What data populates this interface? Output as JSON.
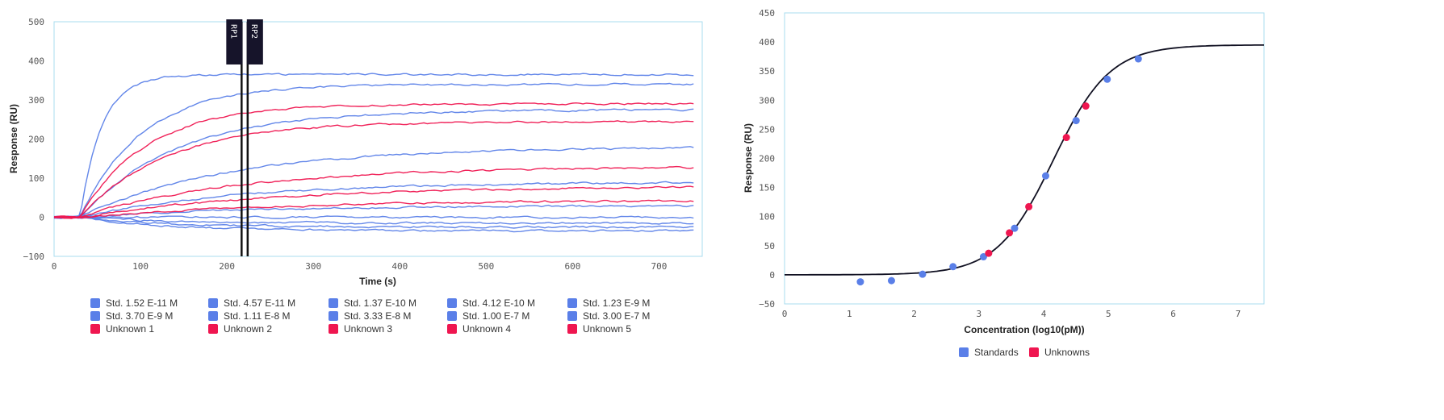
{
  "colors": {
    "standard": "#5a7fe8",
    "unknown": "#ef1650",
    "border": "#a9dcef",
    "curve": "#111122"
  },
  "chart_data": [
    {
      "type": "line",
      "title": "",
      "xlabel": "Time (s)",
      "ylabel": "Response (RU)",
      "xlim": [
        0,
        750
      ],
      "ylim": [
        -100,
        500
      ],
      "xticks": [
        "0",
        "100",
        "200",
        "300",
        "400",
        "500",
        "600",
        "700"
      ],
      "yticks": [
        "500",
        "400",
        "300",
        "200",
        "100",
        "0",
        "−100"
      ],
      "injection_start": 30,
      "markers": [
        {
          "label": "RP1",
          "x": 217
        },
        {
          "label": "RP2",
          "x": 224
        }
      ],
      "series": [
        {
          "name": "Std. 1.52 E-11 M",
          "kind": "standard",
          "plateau": -35,
          "rate": 0.01
        },
        {
          "name": "Std. 4.57 E-11 M",
          "kind": "standard",
          "plateau": -25,
          "rate": 0.01
        },
        {
          "name": "Std. 1.37 E-10 M",
          "kind": "standard",
          "plateau": -15,
          "rate": 0.01
        },
        {
          "name": "Std. 4.12 E-10 M",
          "kind": "standard",
          "plateau": 0,
          "rate": 0.008
        },
        {
          "name": "Std. 1.23 E-9 M",
          "kind": "standard",
          "plateau": 30,
          "rate": 0.005
        },
        {
          "name": "Std. 3.70 E-9 M",
          "kind": "standard",
          "plateau": 90,
          "rate": 0.0055
        },
        {
          "name": "Std. 1.11 E-8 M",
          "kind": "standard",
          "plateau": 180,
          "rate": 0.006
        },
        {
          "name": "Std. 3.33 E-8 M",
          "kind": "standard",
          "plateau": 275,
          "rate": 0.009
        },
        {
          "name": "Std. 1.00 E-7 M",
          "kind": "standard",
          "plateau": 340,
          "rate": 0.014
        },
        {
          "name": "Std. 3.00 E-7 M",
          "kind": "standard",
          "plateau": 365,
          "rate": 0.04
        },
        {
          "name": "Unknown 1",
          "kind": "unknown",
          "plateau": 290,
          "rate": 0.013
        },
        {
          "name": "Unknown 2",
          "kind": "unknown",
          "plateau": 245,
          "rate": 0.01
        },
        {
          "name": "Unknown 3",
          "kind": "unknown",
          "plateau": 130,
          "rate": 0.0055
        },
        {
          "name": "Unknown 4",
          "kind": "unknown",
          "plateau": 80,
          "rate": 0.0045
        },
        {
          "name": "Unknown 5",
          "kind": "unknown",
          "plateau": 45,
          "rate": 0.004
        }
      ],
      "legend_order": [
        "Std. 1.52 E-11 M",
        "Std. 4.57 E-11 M",
        "Std. 1.37 E-10 M",
        "Std. 4.12 E-10 M",
        "Std. 1.23 E-9 M",
        "Std. 3.70 E-9 M",
        "Std. 1.11 E-8 M",
        "Std. 3.33 E-8 M",
        "Std. 1.00 E-7 M",
        "Std. 3.00 E-7 M",
        "Unknown 1",
        "Unknown 2",
        "Unknown 3",
        "Unknown 4",
        "Unknown 5"
      ],
      "legend_placement": "bottom"
    },
    {
      "type": "scatter",
      "xlabel": "Concentration (log10(pM))",
      "ylabel": "Response (RU)",
      "xlim": [
        0,
        7.4
      ],
      "ylim": [
        -50,
        450
      ],
      "xticks": [
        "0",
        "1",
        "2",
        "3",
        "4",
        "5",
        "6",
        "7"
      ],
      "yticks": [
        "450",
        "400",
        "350",
        "300",
        "250",
        "200",
        "150",
        "100",
        "50",
        "0",
        "−50"
      ],
      "fit": {
        "bottom": 0,
        "top": 395,
        "log_ec50": 4.15,
        "hill": 1.0
      },
      "standards": [
        [
          1.17,
          -12
        ],
        [
          1.65,
          -10
        ],
        [
          2.13,
          1
        ],
        [
          2.6,
          14
        ],
        [
          3.07,
          31
        ],
        [
          3.55,
          80
        ],
        [
          4.03,
          170
        ],
        [
          4.5,
          265
        ],
        [
          4.98,
          336
        ],
        [
          5.46,
          371
        ]
      ],
      "unknowns": [
        [
          3.15,
          37
        ],
        [
          3.47,
          72
        ],
        [
          3.77,
          117
        ],
        [
          4.35,
          236
        ],
        [
          4.65,
          290
        ]
      ],
      "legend": [
        "Standards",
        "Unknowns"
      ],
      "legend_placement": "bottom"
    }
  ]
}
